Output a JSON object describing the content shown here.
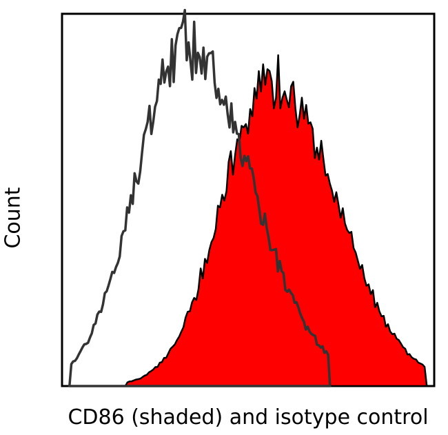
{
  "chart": {
    "type": "flow-cytometry-histogram",
    "ylabel": "Count",
    "xlabel": "CD86 (shaded) and isotype control",
    "label_fontsize": 30,
    "background_color": "#ffffff",
    "plot_border_color": "#000000",
    "plot_border_width": 3,
    "aspect_ratio": 1.0,
    "xlim": [
      0,
      1
    ],
    "ylim": [
      0,
      1.05
    ],
    "series": [
      {
        "name": "CD86",
        "fill": "#ff0000",
        "stroke": "#000000",
        "stroke_width": 2.5,
        "peak_x": 0.56,
        "peak_y": 0.86,
        "width": 0.13,
        "baseline_end_x": 0.98
      },
      {
        "name": "isotype control",
        "fill": "none",
        "stroke": "#333333",
        "stroke_width": 3.5,
        "peak_x": 0.33,
        "peak_y": 0.97,
        "width": 0.13,
        "baseline_end_x": 0.72
      }
    ]
  }
}
